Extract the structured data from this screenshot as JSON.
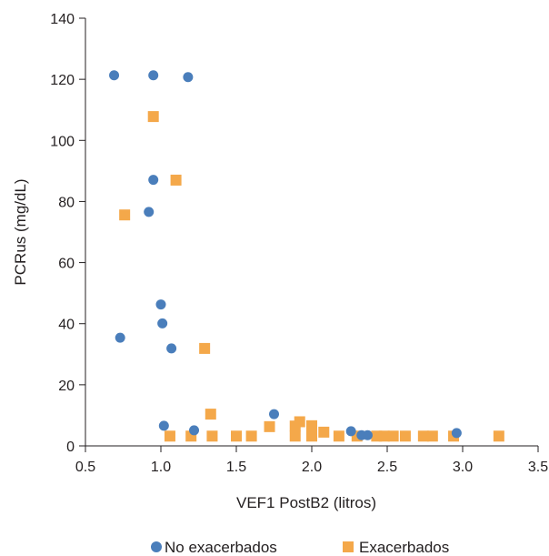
{
  "chart_data": {
    "type": "scatter",
    "title": "",
    "xlabel": "VEF1 PostB2 (litros)",
    "ylabel": "PCRus (mg/dL)",
    "xlim": [
      0.5,
      3.5
    ],
    "ylim": [
      0,
      140
    ],
    "xticks": [
      "0.5",
      "1.0",
      "1.5",
      "2.0",
      "2.5",
      "3.0",
      "3.5"
    ],
    "yticks": [
      "0",
      "20",
      "40",
      "60",
      "80",
      "100",
      "120",
      "140"
    ],
    "grid": false,
    "legend_position": "bottom",
    "series": [
      {
        "name": "No exacerbados",
        "marker": "circle",
        "color": "#4a7ebb",
        "points": [
          [
            0.69,
            121.3
          ],
          [
            0.95,
            121.3
          ],
          [
            1.18,
            120.7
          ],
          [
            0.95,
            87.1
          ],
          [
            0.92,
            76.6
          ],
          [
            1.0,
            46.3
          ],
          [
            1.01,
            40.1
          ],
          [
            0.73,
            35.4
          ],
          [
            1.07,
            31.9
          ],
          [
            1.75,
            10.4
          ],
          [
            1.02,
            6.6
          ],
          [
            1.22,
            5.1
          ],
          [
            2.26,
            4.8
          ],
          [
            2.33,
            3.5
          ],
          [
            2.37,
            3.5
          ],
          [
            2.96,
            4.2
          ]
        ]
      },
      {
        "name": "Exacerbados",
        "marker": "square",
        "color": "#f4a84a",
        "points": [
          [
            0.95,
            107.8
          ],
          [
            1.1,
            87.0
          ],
          [
            0.76,
            75.6
          ],
          [
            1.29,
            31.9
          ],
          [
            1.33,
            10.4
          ],
          [
            1.72,
            6.3
          ],
          [
            1.89,
            6.5
          ],
          [
            1.92,
            7.9
          ],
          [
            2.0,
            6.6
          ],
          [
            1.06,
            3.2
          ],
          [
            1.2,
            3.2
          ],
          [
            1.34,
            3.2
          ],
          [
            1.5,
            3.2
          ],
          [
            1.6,
            3.2
          ],
          [
            1.89,
            3.2
          ],
          [
            2.0,
            3.2
          ],
          [
            2.08,
            4.5
          ],
          [
            2.18,
            3.2
          ],
          [
            2.3,
            3.2
          ],
          [
            2.43,
            3.2
          ],
          [
            2.48,
            3.2
          ],
          [
            2.54,
            3.2
          ],
          [
            2.62,
            3.2
          ],
          [
            2.74,
            3.2
          ],
          [
            2.8,
            3.2
          ],
          [
            2.94,
            3.2
          ],
          [
            3.24,
            3.2
          ]
        ]
      }
    ]
  }
}
